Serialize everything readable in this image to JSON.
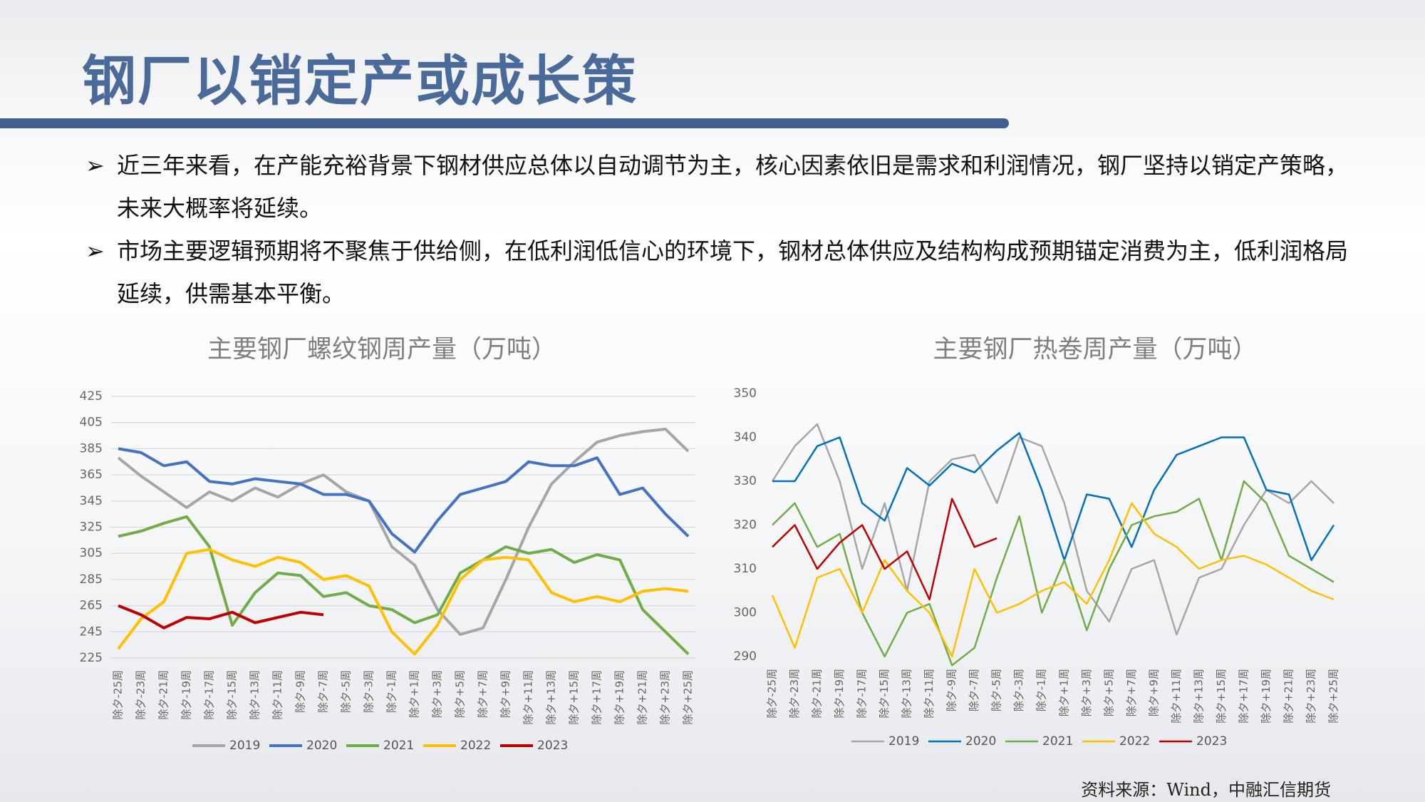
{
  "header": {
    "title": "钢厂以销定产或成长策"
  },
  "bullets": [
    "近三年来看，在产能充裕背景下钢材供应总体以自动调节为主，核心因素依旧是需求和利润情况，钢厂坚持以销定产策略，未来大概率将延续。",
    "市场主要逻辑预期将不聚焦于供给侧，在低利润低信心的环境下，钢材总体供应及结构构成预期锚定消费为主，低利润格局延续，供需基本平衡。"
  ],
  "source": "资料来源：Wind，中融汇信期货",
  "chart_data": [
    {
      "type": "line",
      "title": "主要钢厂螺纹钢周产量（万吨）",
      "categories": [
        "除夕-25周",
        "除夕-23周",
        "除夕-21周",
        "除夕-19周",
        "除夕-17周",
        "除夕-15周",
        "除夕-13周",
        "除夕-11周",
        "除夕-9周",
        "除夕-7周",
        "除夕-5周",
        "除夕-3周",
        "除夕-1周",
        "除夕+1周",
        "除夕+3周",
        "除夕+5周",
        "除夕+7周",
        "除夕+9周",
        "除夕+11周",
        "除夕+13周",
        "除夕+15周",
        "除夕+17周",
        "除夕+19周",
        "除夕+21周",
        "除夕+23周",
        "除夕+25周"
      ],
      "ylim": [
        225,
        425
      ],
      "yticks": [
        225,
        245,
        265,
        285,
        305,
        325,
        345,
        365,
        385,
        405,
        425
      ],
      "grid": true,
      "series": [
        {
          "name": "2019",
          "color": "#a6a6a6",
          "values": [
            378,
            364,
            352,
            340,
            352,
            345,
            355,
            348,
            358,
            365,
            352,
            345,
            310,
            296,
            262,
            243,
            248,
            285,
            325,
            358,
            375,
            390,
            395,
            398,
            400,
            383
          ]
        },
        {
          "name": "2020",
          "color": "#4472c4",
          "values": [
            385,
            382,
            372,
            375,
            360,
            358,
            362,
            360,
            358,
            350,
            350,
            345,
            320,
            306,
            330,
            350,
            355,
            360,
            375,
            372,
            372,
            378,
            350,
            355,
            335,
            318
          ]
        },
        {
          "name": "2021",
          "color": "#70ad47",
          "values": [
            318,
            322,
            328,
            333,
            310,
            250,
            275,
            290,
            288,
            272,
            275,
            265,
            262,
            252,
            258,
            290,
            300,
            310,
            305,
            308,
            298,
            304,
            300,
            262,
            245,
            228
          ]
        },
        {
          "name": "2022",
          "color": "#ffc000",
          "values": [
            232,
            255,
            268,
            305,
            308,
            300,
            295,
            302,
            298,
            285,
            288,
            280,
            245,
            228,
            250,
            285,
            300,
            302,
            300,
            275,
            268,
            272,
            268,
            276,
            278,
            276
          ]
        },
        {
          "name": "2023",
          "color": "#c00000",
          "values": [
            265,
            258,
            248,
            256,
            255,
            260,
            252,
            256,
            260,
            258,
            null,
            null,
            null,
            null,
            null,
            null,
            null,
            null,
            null,
            null,
            null,
            null,
            null,
            null,
            null,
            null
          ]
        }
      ]
    },
    {
      "type": "line",
      "title": "主要钢厂热卷周产量（万吨）",
      "categories": [
        "除夕-25周",
        "除夕-23周",
        "除夕-21周",
        "除夕-19周",
        "除夕-17周",
        "除夕-15周",
        "除夕-13周",
        "除夕-11周",
        "除夕-9周",
        "除夕-7周",
        "除夕-5周",
        "除夕-3周",
        "除夕-1周",
        "除夕+1周",
        "除夕+3周",
        "除夕+5周",
        "除夕+7周",
        "除夕+9周",
        "除夕+11周",
        "除夕+13周",
        "除夕+15周",
        "除夕+17周",
        "除夕+19周",
        "除夕+21周",
        "除夕+23周",
        "除夕+25周"
      ],
      "ylim": [
        290,
        350
      ],
      "yticks": [
        290,
        300,
        310,
        320,
        330,
        340,
        350
      ],
      "grid": false,
      "series": [
        {
          "name": "2019",
          "color": "#a6a6a6",
          "values": [
            330,
            338,
            343,
            330,
            310,
            325,
            305,
            330,
            335,
            336,
            325,
            340,
            338,
            325,
            305,
            298,
            310,
            312,
            295,
            308,
            310,
            320,
            328,
            325,
            330,
            325
          ]
        },
        {
          "name": "2020",
          "color": "#0070c0",
          "values": [
            330,
            330,
            338,
            340,
            325,
            321,
            333,
            329,
            334,
            332,
            337,
            341,
            328,
            312,
            327,
            326,
            315,
            328,
            336,
            338,
            340,
            340,
            328,
            327,
            312,
            320
          ]
        },
        {
          "name": "2021",
          "color": "#70ad47",
          "values": [
            320,
            325,
            315,
            318,
            300,
            290,
            300,
            302,
            288,
            292,
            308,
            322,
            300,
            312,
            296,
            310,
            320,
            322,
            323,
            326,
            312,
            330,
            325,
            313,
            310,
            307
          ]
        },
        {
          "name": "2022",
          "color": "#ffc000",
          "values": [
            304,
            292,
            308,
            310,
            300,
            312,
            305,
            300,
            290,
            310,
            300,
            302,
            305,
            307,
            302,
            312,
            325,
            318,
            315,
            310,
            312,
            313,
            311,
            308,
            305,
            303
          ]
        },
        {
          "name": "2023",
          "color": "#c00000",
          "values": [
            315,
            320,
            310,
            316,
            320,
            310,
            314,
            303,
            326,
            315,
            317,
            null,
            null,
            null,
            null,
            null,
            null,
            null,
            null,
            null,
            null,
            null,
            null,
            null,
            null,
            null
          ]
        }
      ]
    }
  ]
}
